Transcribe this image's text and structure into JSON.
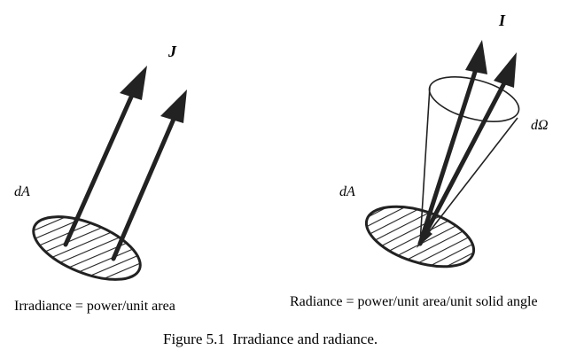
{
  "left_panel": {
    "vector_label": "J",
    "area_label": "dA",
    "caption": "Irradiance = power/unit area"
  },
  "right_panel": {
    "vector_label": "I",
    "area_label": "dA",
    "solid_angle_label": "dΩ",
    "caption": "Radiance = power/unit area/unit solid angle"
  },
  "figure_caption": "Figure 5.1  Irradiance and radiance.",
  "colors": {
    "ink": "#222222",
    "background": "#ffffff"
  }
}
